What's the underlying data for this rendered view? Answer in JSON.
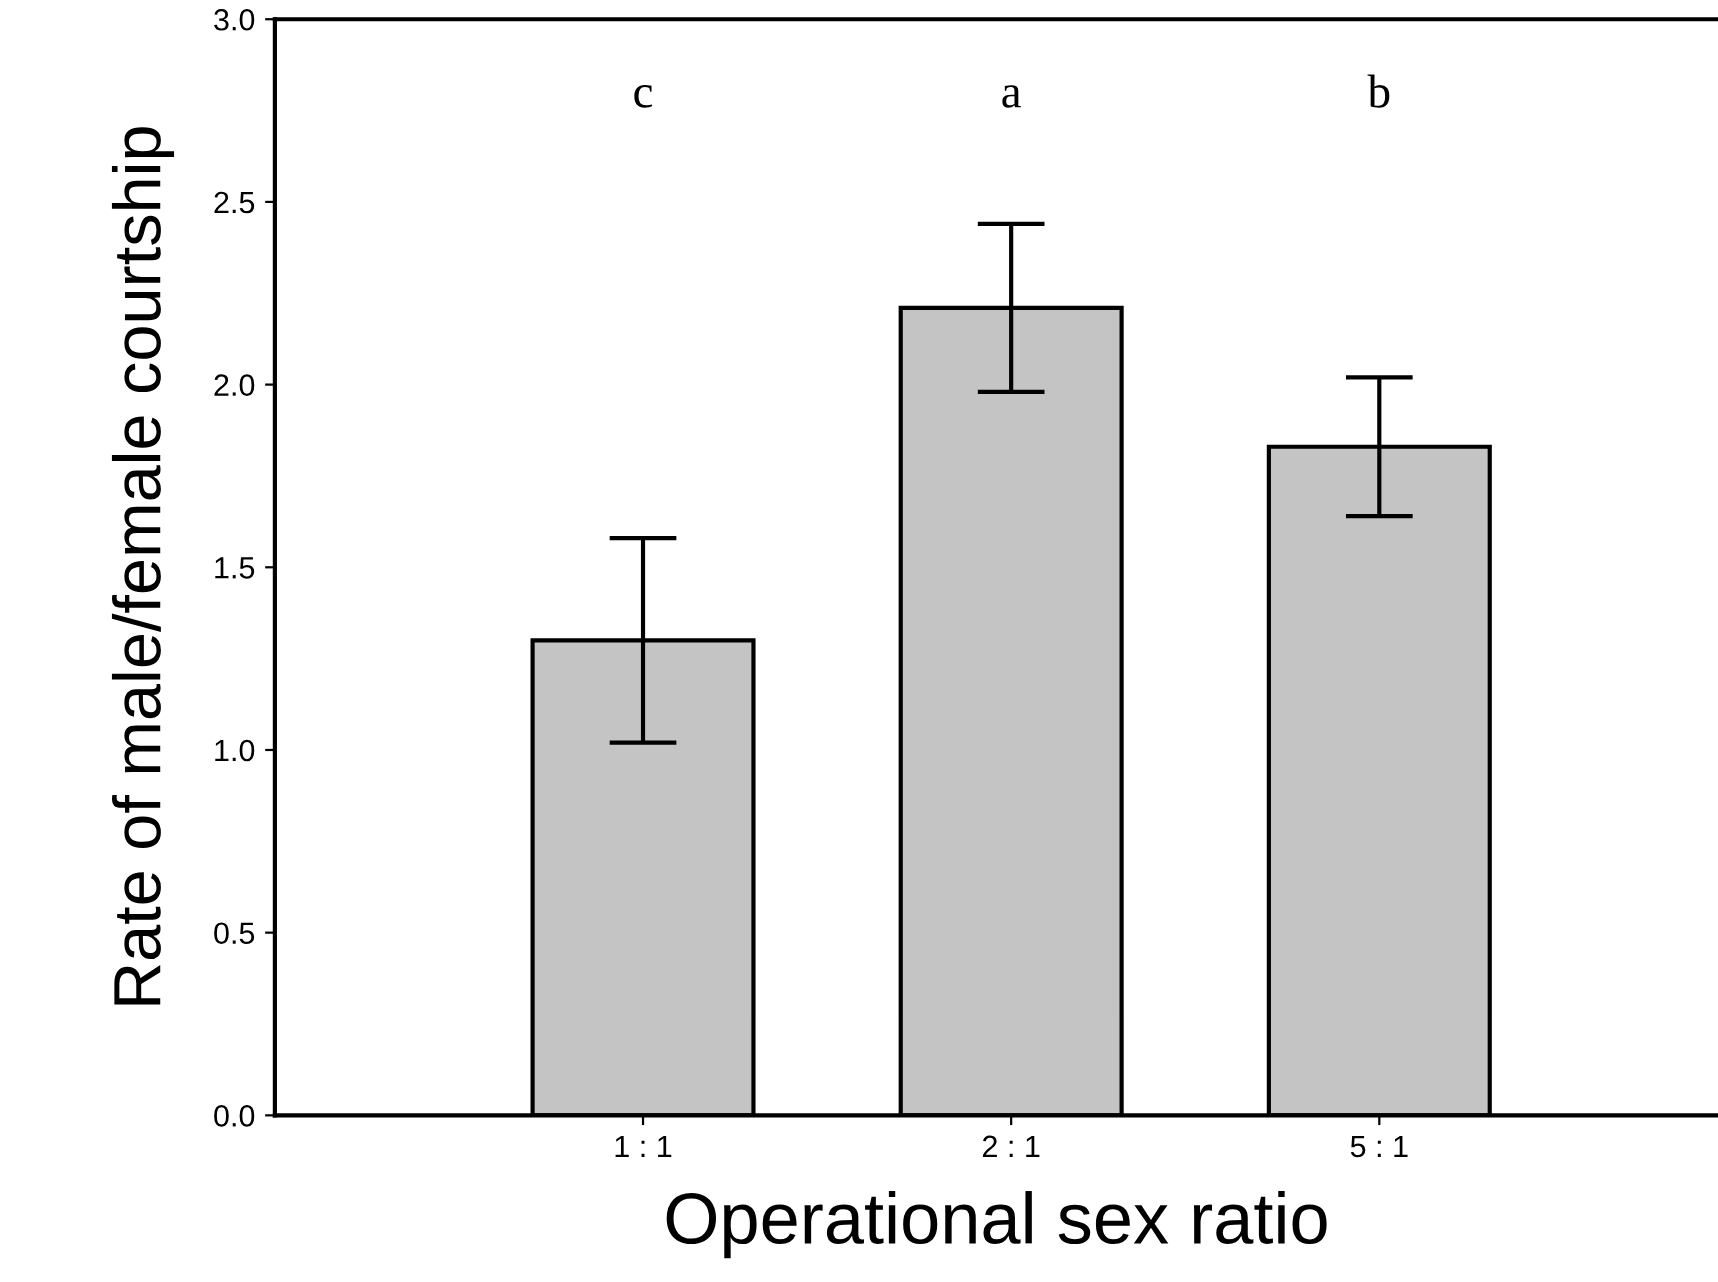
{
  "chart_data": {
    "type": "bar",
    "xlabel": "Operational sex ratio",
    "ylabel": "Rate of male/female courtship",
    "categories": [
      "1 : 1",
      "2 : 1",
      "5 : 1"
    ],
    "values": [
      1.3,
      2.21,
      1.83
    ],
    "errors": [
      0.28,
      0.23,
      0.19
    ],
    "color": "#c4c4c4",
    "ylim": [
      0,
      3.0
    ],
    "yticks": [
      {
        "value": 0,
        "label": "0.0"
      },
      0.5,
      {
        "value": 1,
        "label": "1.0"
      },
      1.5,
      {
        "value": 2,
        "label": "2.0"
      },
      2.5,
      {
        "value": 3,
        "label": "3.0"
      }
    ],
    "annotations": [
      "c",
      "a",
      "b"
    ],
    "grid": false,
    "legend": false
  }
}
